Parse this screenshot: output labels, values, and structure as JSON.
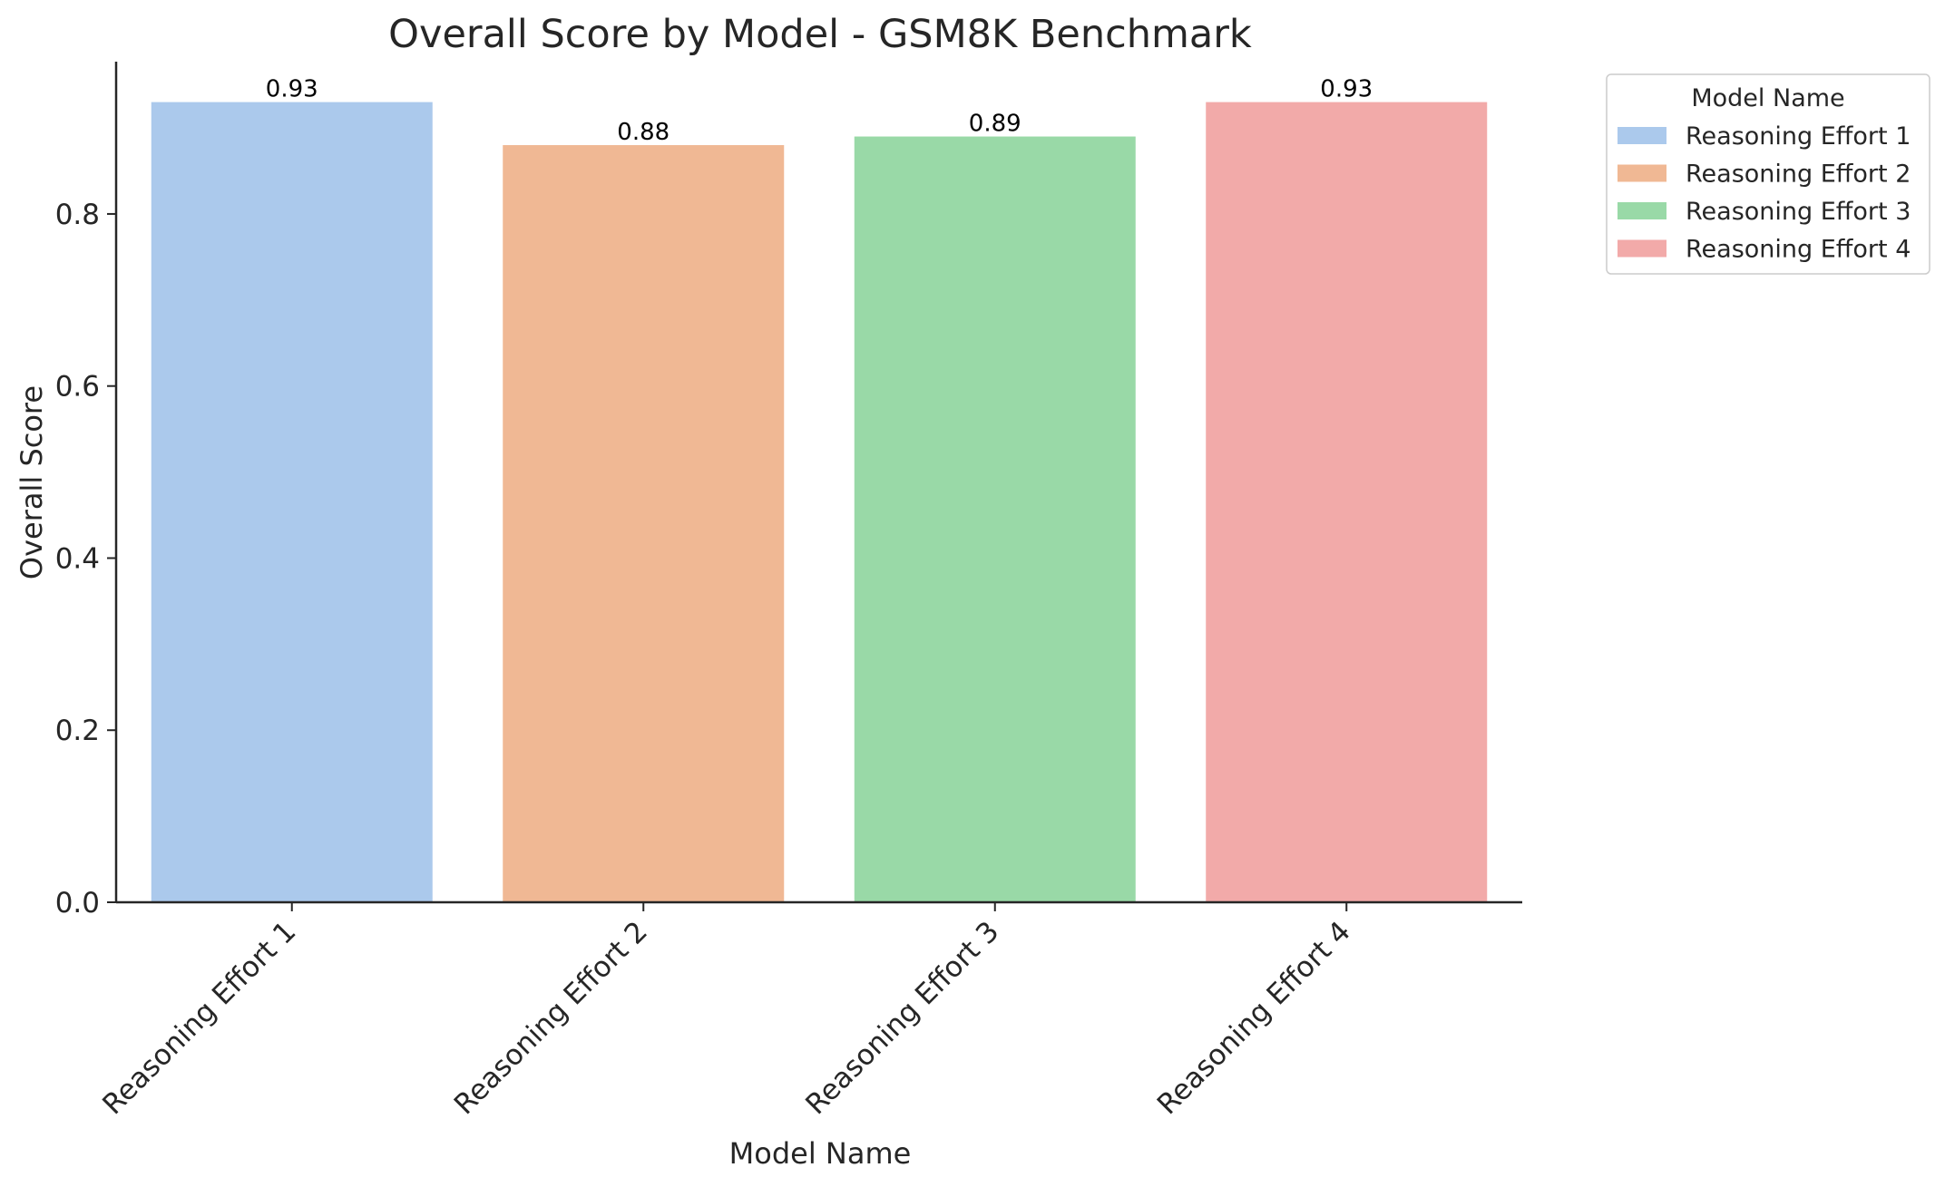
{
  "chart_data": {
    "type": "bar",
    "title": "Overall Score by Model - GSM8K Benchmark",
    "xlabel": "Model Name",
    "ylabel": "Overall Score",
    "categories": [
      "Reasoning Effort 1",
      "Reasoning Effort 2",
      "Reasoning Effort 3",
      "Reasoning Effort 4"
    ],
    "values": [
      0.93,
      0.88,
      0.89,
      0.93
    ],
    "data_labels": [
      "0.93",
      "0.88",
      "0.89",
      "0.93"
    ],
    "colors": [
      "#abc9ec",
      "#f0b894",
      "#99d9a7",
      "#f2aaa9"
    ],
    "ylim": [
      0,
      0.977
    ],
    "yticks": [
      0.0,
      0.2,
      0.4,
      0.6,
      0.8
    ],
    "ytick_labels": [
      "0.0",
      "0.2",
      "0.4",
      "0.6",
      "0.8"
    ],
    "grid": false,
    "legend": {
      "title": "Model Name",
      "placement": "outside-top-right",
      "entries": [
        "Reasoning Effort 1",
        "Reasoning Effort 2",
        "Reasoning Effort 3",
        "Reasoning Effort 4"
      ]
    }
  }
}
